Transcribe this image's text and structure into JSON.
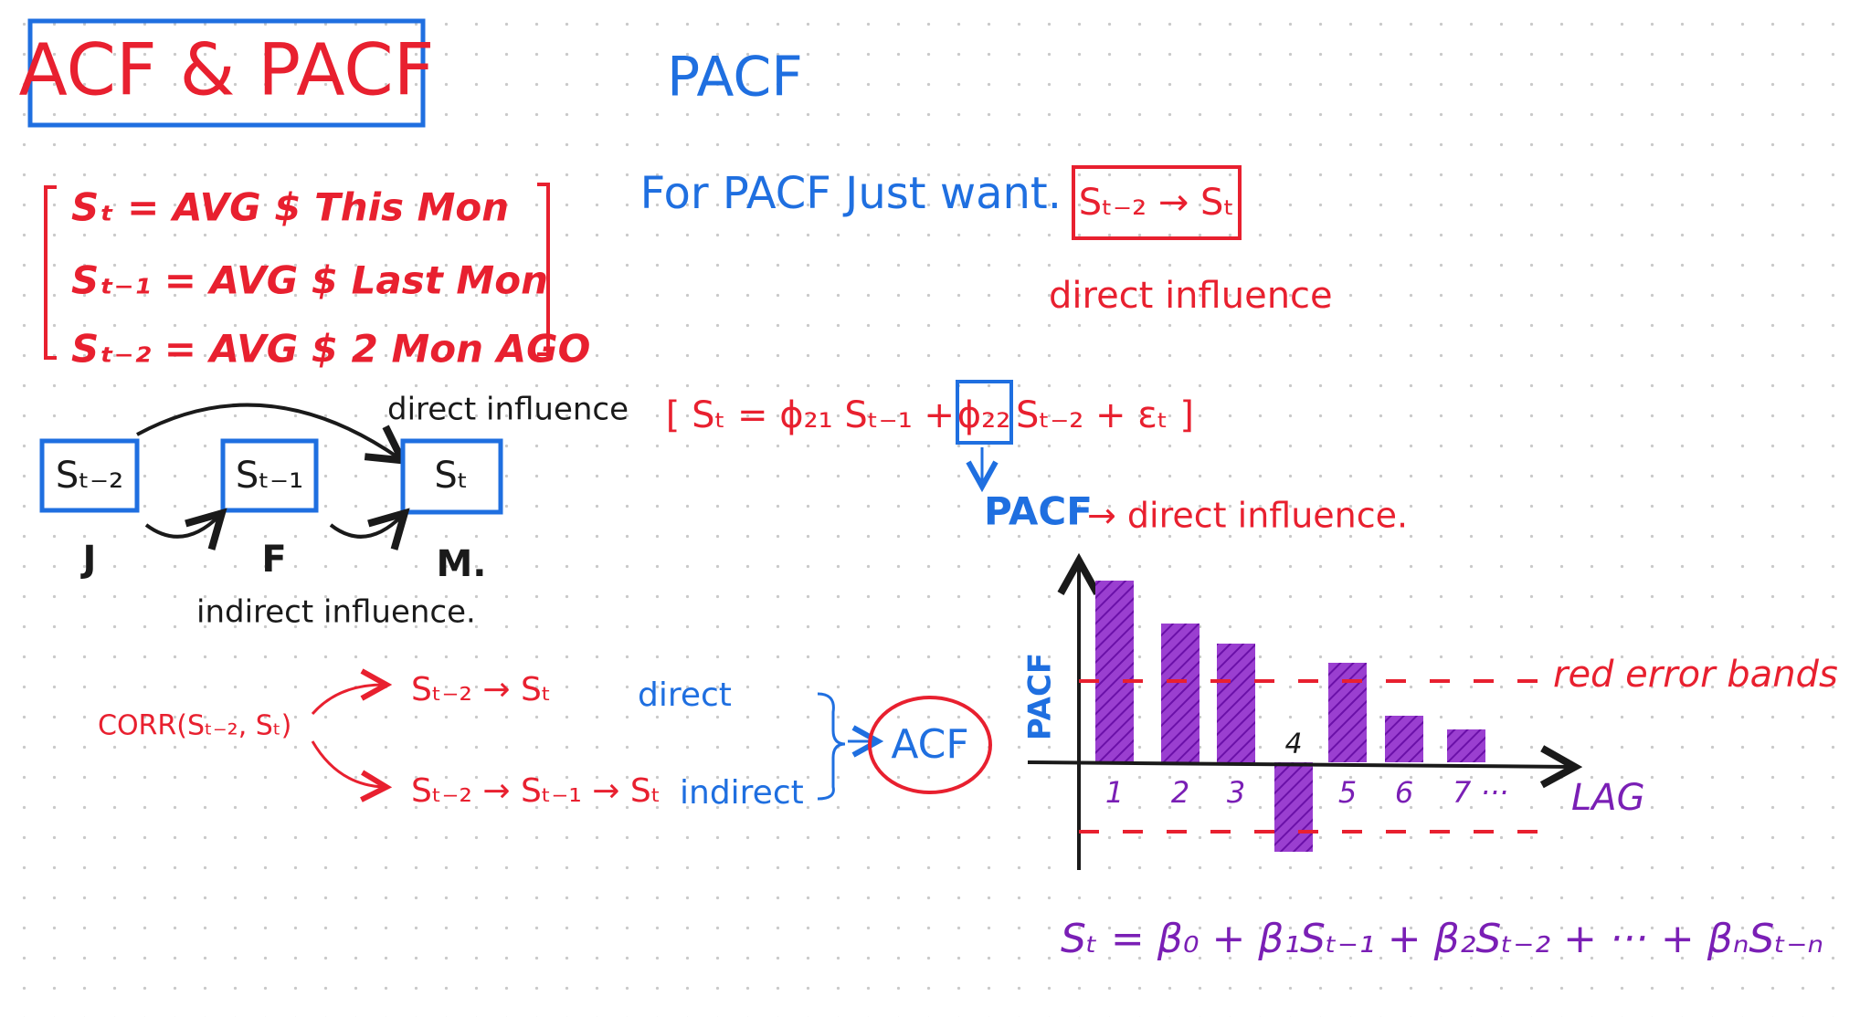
{
  "title": "ACF & PACF",
  "definitions": [
    "Sₜ = AVG $ This Mon",
    "Sₜ₋₁ = AVG $ Last Mon",
    "Sₜ₋₂ = AVG $ 2 Mon AGO"
  ],
  "influence_diagram": {
    "nodes": [
      {
        "label": "Sₜ₋₂",
        "month": "J"
      },
      {
        "label": "Sₜ₋₁",
        "month": "F"
      },
      {
        "label": "Sₜ",
        "month": "M."
      }
    ],
    "direct_label": "direct influence",
    "indirect_label": "indirect influence."
  },
  "corr": {
    "expression": "CORR(Sₜ₋₂, Sₜ)",
    "paths": [
      {
        "chain": "Sₜ₋₂ → Sₜ",
        "kind": "direct"
      },
      {
        "chain": "Sₜ₋₂ → Sₜ₋₁ → Sₜ",
        "kind": "indirect"
      }
    ],
    "result": "ACF"
  },
  "pacf": {
    "heading": "PACF",
    "intro": "For PACF Just want.",
    "target": "Sₜ₋₂ → Sₜ",
    "target_note": "direct influence",
    "equation_left": "[ Sₜ = ϕ₂₁ Sₜ₋₁ +",
    "coefficient": "ϕ₂₂",
    "equation_right": "Sₜ₋₂ + εₜ ]",
    "coefficient_label": "PACF",
    "coefficient_meaning": "→ direct influence.",
    "plot": {
      "y_label": "PACF",
      "x_label": "LAG",
      "lags": [
        "1",
        "2",
        "3",
        "4",
        "5",
        "6",
        "7 ···"
      ],
      "band_label": "red error bands"
    },
    "regression": "Sₜ = β₀ + β₁Sₜ₋₁ + β₂Sₜ₋₂ + ··· + βₙSₜ₋ₙ"
  }
}
